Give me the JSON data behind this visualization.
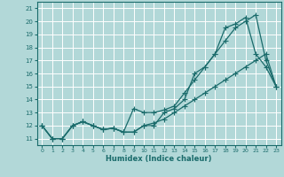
{
  "xlabel": "Humidex (Indice chaleur)",
  "background_color": "#b2d8d8",
  "grid_color": "#ffffff",
  "line_color": "#1a6b6b",
  "xlim": [
    -0.5,
    23.5
  ],
  "ylim": [
    10.5,
    21.5
  ],
  "xticks": [
    0,
    1,
    2,
    3,
    4,
    5,
    6,
    7,
    8,
    9,
    10,
    11,
    12,
    13,
    14,
    15,
    16,
    17,
    18,
    19,
    20,
    21,
    22,
    23
  ],
  "yticks": [
    11,
    12,
    13,
    14,
    15,
    16,
    17,
    18,
    19,
    20,
    21
  ],
  "line1_x": [
    0,
    1,
    2,
    3,
    4,
    5,
    6,
    7,
    8,
    9,
    10,
    11,
    12,
    13,
    14,
    15,
    16,
    17,
    18,
    19,
    20,
    21,
    22,
    23
  ],
  "line1_y": [
    12,
    11,
    11,
    12,
    12.3,
    12,
    11.7,
    11.8,
    11.5,
    11.5,
    12,
    12,
    13,
    13.3,
    14,
    16,
    16.5,
    17.5,
    18.5,
    19.5,
    20,
    20.5,
    17,
    15
  ],
  "line2_x": [
    0,
    1,
    2,
    3,
    4,
    5,
    6,
    7,
    8,
    9,
    10,
    11,
    12,
    13,
    14,
    15,
    16,
    17,
    18,
    19,
    20,
    21,
    22,
    23
  ],
  "line2_y": [
    12,
    11,
    11,
    12,
    12.3,
    12,
    11.7,
    11.8,
    11.5,
    13.3,
    13,
    13,
    13.2,
    13.5,
    14.5,
    15.5,
    16.5,
    17.5,
    19.5,
    19.8,
    20.3,
    17.5,
    16.5,
    15
  ],
  "line3_x": [
    0,
    1,
    2,
    3,
    4,
    5,
    6,
    7,
    8,
    9,
    10,
    11,
    12,
    13,
    14,
    15,
    16,
    17,
    18,
    19,
    20,
    21,
    22,
    23
  ],
  "line3_y": [
    12,
    11,
    11,
    12,
    12.3,
    12,
    11.7,
    11.8,
    11.5,
    11.5,
    12,
    12.2,
    12.5,
    13,
    13.5,
    14,
    14.5,
    15,
    15.5,
    16,
    16.5,
    17,
    17.5,
    15
  ]
}
